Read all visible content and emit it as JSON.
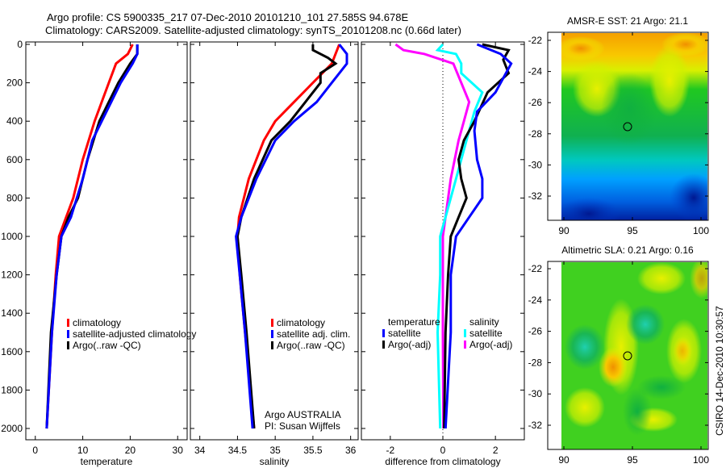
{
  "title_line1": "Argo profile: CS 5900335_217 07-Dec-2010 20101210_101 27.585S 94.678E",
  "title_line2": "Climatology: CARS2009. Satellite-adjusted climatology: synTS_20101208.nc (0.66d later)",
  "side_text": "CSIRO 14-Dec-2010 10:30:57",
  "credit": [
    "Argo AUSTRALIA",
    "PI: Susan Wijffels"
  ],
  "chart_data": [
    {
      "type": "line",
      "xlabel": "temperature",
      "ylabel": "",
      "xlim": [
        -2,
        32
      ],
      "ylim": [
        2050,
        0
      ],
      "xticks": [
        0,
        10,
        20,
        30
      ],
      "yticks": [
        0,
        200,
        400,
        600,
        800,
        1000,
        1200,
        1400,
        1600,
        1800,
        2000
      ],
      "legend": [
        "climatology",
        "satellite-adjusted climatology",
        "Argo(..raw -QC)"
      ],
      "series": [
        {
          "name": "climatology",
          "color": "#ff0000",
          "depth": [
            0,
            50,
            100,
            200,
            300,
            400,
            600,
            800,
            900,
            1000,
            1200,
            1500,
            2000
          ],
          "values": [
            20.5,
            19.5,
            17,
            15.5,
            14,
            12.5,
            10,
            8,
            6.5,
            5,
            4.3,
            3.5,
            2.4
          ]
        },
        {
          "name": "Argo(..raw -QC)",
          "color": "#000000",
          "depth": [
            0,
            50,
            100,
            200,
            300,
            400,
            600,
            800,
            900,
            1000,
            1200,
            1500,
            2000
          ],
          "values": [
            21.5,
            21.5,
            20,
            17.5,
            15.5,
            13.5,
            11,
            9,
            7,
            5.5,
            4.5,
            3.3,
            2.4
          ]
        },
        {
          "name": "satellite-adjusted climatology",
          "color": "#0000ff",
          "depth": [
            0,
            50,
            100,
            200,
            300,
            400,
            500,
            700,
            900,
            1000,
            1200,
            1500,
            2000
          ],
          "values": [
            21.5,
            21.5,
            20.5,
            18,
            16,
            14,
            12,
            10,
            7.5,
            5.5,
            4.5,
            3.5,
            2.4
          ]
        }
      ]
    },
    {
      "type": "line",
      "xlabel": "salinity",
      "xlim": [
        33.875,
        36.1
      ],
      "ylim": [
        2050,
        0
      ],
      "xticks": [
        34,
        34.5,
        35,
        35.5,
        36
      ],
      "legend": [
        "climatology",
        "satellite adj. clim.",
        "Argo(..raw -QC)"
      ],
      "series": [
        {
          "name": "climatology",
          "color": "#ff0000",
          "depth": [
            0,
            100,
            200,
            300,
            400,
            500,
            700,
            900,
            1000,
            1200,
            1500,
            2000
          ],
          "values": [
            35.85,
            35.75,
            35.5,
            35.25,
            35.0,
            34.85,
            34.65,
            34.52,
            34.5,
            34.53,
            34.6,
            34.72
          ]
        },
        {
          "name": "Argo(..raw -QC)",
          "color": "#000000",
          "depth": [
            0,
            30,
            70,
            100,
            150,
            200,
            300,
            400,
            500,
            700,
            900,
            1000,
            1200,
            1500,
            2000
          ],
          "values": [
            35.5,
            35.5,
            35.7,
            35.8,
            35.6,
            35.6,
            35.4,
            35.2,
            34.95,
            34.72,
            34.55,
            34.5,
            34.55,
            34.62,
            34.72
          ]
        },
        {
          "name": "satellite adj. clim.",
          "color": "#0000ff",
          "depth": [
            0,
            50,
            100,
            200,
            300,
            400,
            500,
            700,
            900,
            1000,
            1200,
            1500,
            2000
          ],
          "values": [
            35.85,
            35.95,
            35.95,
            35.75,
            35.55,
            35.25,
            35.0,
            34.75,
            34.55,
            34.48,
            34.53,
            34.6,
            34.7
          ]
        }
      ]
    },
    {
      "type": "line",
      "xlabel": "difference from climatology",
      "xlim": [
        -3.1,
        3.1
      ],
      "ylim": [
        2050,
        0
      ],
      "xticks": [
        -2,
        0,
        2
      ],
      "legend_temperature": {
        "title": "temperature",
        "items": [
          "satellite",
          "Argo(-adj)"
        ]
      },
      "legend_salinity": {
        "title": "salinity",
        "items": [
          "satellite",
          "Argo(-adj)"
        ]
      },
      "series": [
        {
          "name": "salinity Argo(-adj)",
          "color": "#ff00ff",
          "depth": [
            0,
            30,
            50,
            100,
            200,
            300,
            400,
            500,
            700,
            900,
            1000,
            1500,
            2000
          ],
          "values": [
            -1.8,
            -1.5,
            -0.7,
            0.4,
            0.7,
            1.0,
            0.8,
            0.6,
            0.3,
            0.1,
            0,
            0,
            0.02
          ]
        },
        {
          "name": "salinity satellite",
          "color": "#00ffff",
          "depth": [
            0,
            30,
            50,
            100,
            150,
            250,
            350,
            500,
            700,
            900,
            1000,
            1200,
            1500,
            2000
          ],
          "values": [
            0,
            -0.2,
            0.5,
            0.7,
            0.7,
            1.5,
            1.2,
            0.9,
            0.5,
            0.1,
            -0.1,
            -0.1,
            -0.2,
            -0.1
          ]
        },
        {
          "name": "temperature Argo(-adj)",
          "color": "#000000",
          "depth": [
            0,
            30,
            80,
            150,
            250,
            400,
            500,
            600,
            700,
            800,
            900,
            1000,
            1200,
            1500,
            2000
          ],
          "values": [
            1.5,
            2.5,
            2.3,
            2.5,
            1.7,
            1.2,
            0.8,
            0.6,
            0.7,
            0.9,
            0.6,
            0.3,
            0.2,
            0.1,
            0.05
          ]
        },
        {
          "name": "temperature satellite",
          "color": "#0000ff",
          "depth": [
            0,
            50,
            100,
            150,
            250,
            350,
            450,
            600,
            700,
            800,
            900,
            1000,
            1200,
            1500,
            2000
          ],
          "values": [
            1.3,
            2.2,
            2.6,
            2.4,
            2.0,
            1.3,
            1.2,
            1.3,
            1.5,
            1.5,
            1.0,
            0.5,
            0.3,
            0.3,
            0.1
          ]
        }
      ]
    }
  ],
  "maps": [
    {
      "title": "AMSR-E SST: 21 Argo: 21.1",
      "xticks": [
        90,
        95,
        100
      ],
      "yticks": [
        -22,
        -24,
        -26,
        -28,
        -30,
        -32
      ],
      "argo_lon": 94.678,
      "argo_lat": -27.585
    },
    {
      "title": "Altimetric SLA: 0.21 Argo: 0.16",
      "xticks": [
        90,
        95,
        100
      ],
      "yticks": [
        -22,
        -24,
        -26,
        -28,
        -30,
        -32
      ],
      "argo_lon": 94.678,
      "argo_lat": -27.585
    }
  ]
}
